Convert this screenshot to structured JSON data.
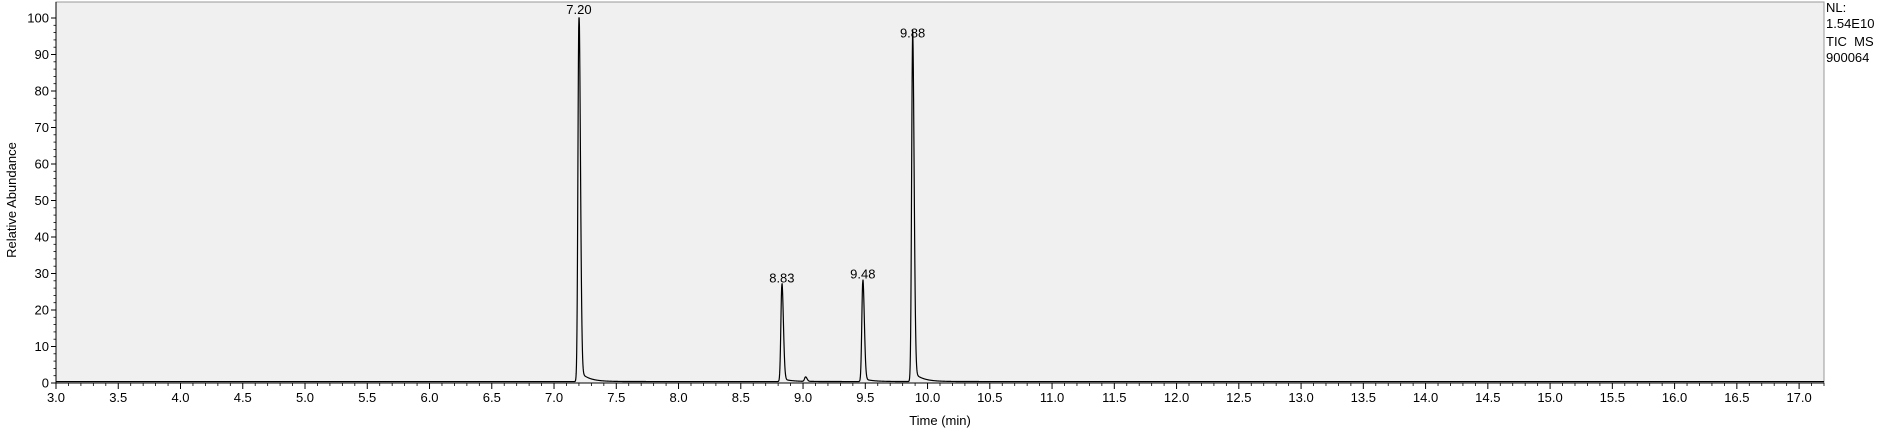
{
  "chart_data": {
    "type": "line",
    "xlabel": "Time (min)",
    "ylabel": "Relative Abundance",
    "xlim": [
      3.0,
      17.2
    ],
    "ylim": [
      0,
      100
    ],
    "x_ticks": [
      3.0,
      3.5,
      4.0,
      4.5,
      5.0,
      5.5,
      6.0,
      6.5,
      7.0,
      7.5,
      8.0,
      8.5,
      9.0,
      9.5,
      10.0,
      10.5,
      11.0,
      11.5,
      12.0,
      12.5,
      13.0,
      13.5,
      14.0,
      14.5,
      15.0,
      15.5,
      16.0,
      16.5,
      17.0
    ],
    "x_tick_labels": [
      "3.0",
      "3.5",
      "4.0",
      "4.5",
      "5.0",
      "5.5",
      "6.0",
      "6.5",
      "7.0",
      "7.5",
      "8.0",
      "8.5",
      "9.0",
      "9.5",
      "10.0",
      "10.5",
      "11.0",
      "11.5",
      "12.0",
      "12.5",
      "13.0",
      "13.5",
      "14.0",
      "14.5",
      "15.0",
      "15.5",
      "16.0",
      "16.5",
      "17.0"
    ],
    "y_ticks": [
      0,
      10,
      20,
      30,
      40,
      50,
      60,
      70,
      80,
      90,
      100
    ],
    "y_tick_labels": [
      "0",
      "10",
      "20",
      "30",
      "40",
      "50",
      "60",
      "70",
      "80",
      "90",
      "100"
    ],
    "peaks": [
      {
        "rt": 7.2,
        "height": 100,
        "label": "7.20"
      },
      {
        "rt": 8.83,
        "height": 26.5,
        "label": "8.83"
      },
      {
        "rt": 9.48,
        "height": 27.5,
        "label": "9.48"
      },
      {
        "rt": 9.88,
        "height": 93.5,
        "label": "9.88"
      }
    ],
    "minor_peaks": [
      {
        "rt": 9.02,
        "height": 1.2
      }
    ],
    "baseline": 0.4,
    "grid": false,
    "plot_background": "#f0f0f0",
    "trace_color": "#000000"
  },
  "info": {
    "lines": [
      "NL:",
      "1.54E10",
      "TIC  MS",
      "900064"
    ]
  }
}
